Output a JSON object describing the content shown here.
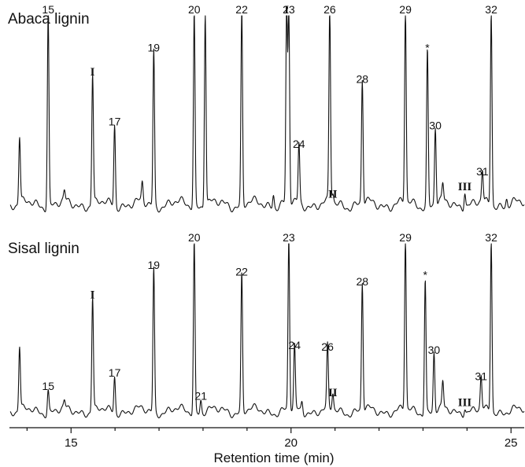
{
  "chart_data": {
    "type": "line",
    "xlabel": "Retention time (min)",
    "xlim": [
      13.6,
      25.3
    ],
    "xticks": [
      15,
      20,
      25
    ],
    "panels": [
      {
        "title": "Abaca lignin",
        "peaks": [
          {
            "label": "",
            "x": 13.83,
            "h": 0.36
          },
          {
            "label": "15",
            "x": 14.48,
            "h": 1.05
          },
          {
            "label": "",
            "x": 14.85,
            "h": 0.05
          },
          {
            "label": "I",
            "x": 15.49,
            "h": 0.71
          },
          {
            "label": "17",
            "x": 15.99,
            "h": 0.44
          },
          {
            "label": "",
            "x": 16.62,
            "h": 0.1
          },
          {
            "label": "19",
            "x": 16.88,
            "h": 0.84
          },
          {
            "label": "20",
            "x": 17.8,
            "h": 1.05
          },
          {
            "label": "",
            "x": 18.05,
            "h": 1.05
          },
          {
            "label": "22",
            "x": 18.88,
            "h": 1.05
          },
          {
            "label": "",
            "x": 19.6,
            "h": 0.07
          },
          {
            "label": "I",
            "x": 19.9,
            "h": 1.05
          },
          {
            "label": "23",
            "x": 19.95,
            "h": 1.05
          },
          {
            "label": "24",
            "x": 20.18,
            "h": 0.32
          },
          {
            "label": "26",
            "x": 20.88,
            "h": 1.05
          },
          {
            "label": "II",
            "x": 20.95,
            "h": 0.05
          },
          {
            "label": "28",
            "x": 21.62,
            "h": 0.67
          },
          {
            "label": "29",
            "x": 22.6,
            "h": 1.05
          },
          {
            "label": "*",
            "x": 23.1,
            "h": 0.84
          },
          {
            "label": "30",
            "x": 23.28,
            "h": 0.42
          },
          {
            "label": "",
            "x": 23.45,
            "h": 0.09
          },
          {
            "label": "III",
            "x": 23.95,
            "h": 0.09
          },
          {
            "label": "31",
            "x": 24.35,
            "h": 0.17
          },
          {
            "label": "32",
            "x": 24.55,
            "h": 1.05
          },
          {
            "label": "",
            "x": 24.9,
            "h": 0.04
          }
        ]
      },
      {
        "title": "Sisal lignin",
        "peaks": [
          {
            "label": "",
            "x": 13.83,
            "h": 0.39
          },
          {
            "label": "15",
            "x": 14.48,
            "h": 0.14
          },
          {
            "label": "",
            "x": 14.85,
            "h": 0.04
          },
          {
            "label": "I",
            "x": 15.49,
            "h": 0.7
          },
          {
            "label": "17",
            "x": 15.99,
            "h": 0.22
          },
          {
            "label": "19",
            "x": 16.88,
            "h": 0.88
          },
          {
            "label": "20",
            "x": 17.8,
            "h": 1.05
          },
          {
            "label": "21",
            "x": 17.95,
            "h": 0.08
          },
          {
            "label": "22",
            "x": 18.88,
            "h": 0.84
          },
          {
            "label": "23",
            "x": 19.95,
            "h": 1.05
          },
          {
            "label": "24",
            "x": 20.08,
            "h": 0.39
          },
          {
            "label": "",
            "x": 20.25,
            "h": 0.06
          },
          {
            "label": "26",
            "x": 20.83,
            "h": 0.38
          },
          {
            "label": "II",
            "x": 20.95,
            "h": 0.1
          },
          {
            "label": "28",
            "x": 21.62,
            "h": 0.78
          },
          {
            "label": "29",
            "x": 22.6,
            "h": 1.05
          },
          {
            "label": "*",
            "x": 23.05,
            "h": 0.82
          },
          {
            "label": "30",
            "x": 23.25,
            "h": 0.36
          },
          {
            "label": "",
            "x": 23.45,
            "h": 0.16
          },
          {
            "label": "III",
            "x": 23.95,
            "h": 0.04
          },
          {
            "label": "31",
            "x": 24.32,
            "h": 0.2
          },
          {
            "label": "32",
            "x": 24.55,
            "h": 1.05
          }
        ]
      }
    ]
  }
}
